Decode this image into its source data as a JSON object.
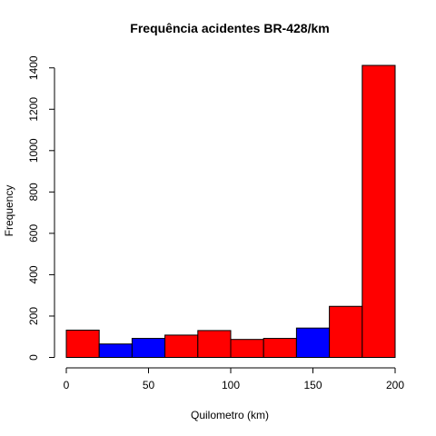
{
  "chart_data": {
    "type": "bar",
    "title": "Frequência acidentes BR-428/km",
    "xlabel": "Quilometro (km)",
    "ylabel": "Frequency",
    "bins": [
      {
        "from": 0,
        "to": 20,
        "value": 132,
        "color": "#ff0000"
      },
      {
        "from": 20,
        "to": 40,
        "value": 65,
        "color": "#0000ff"
      },
      {
        "from": 40,
        "to": 60,
        "value": 92,
        "color": "#0000ff"
      },
      {
        "from": 60,
        "to": 80,
        "value": 108,
        "color": "#ff0000"
      },
      {
        "from": 80,
        "to": 100,
        "value": 130,
        "color": "#ff0000"
      },
      {
        "from": 100,
        "to": 120,
        "value": 87,
        "color": "#ff0000"
      },
      {
        "from": 120,
        "to": 140,
        "value": 92,
        "color": "#ff0000"
      },
      {
        "from": 140,
        "to": 160,
        "value": 142,
        "color": "#0000ff"
      },
      {
        "from": 160,
        "to": 180,
        "value": 247,
        "color": "#ff0000"
      },
      {
        "from": 180,
        "to": 200,
        "value": 1412,
        "color": "#ff0000"
      }
    ],
    "xlim": [
      0,
      200
    ],
    "ylim": [
      0,
      1412
    ],
    "xticks": [
      "0",
      "50",
      "100",
      "150",
      "200"
    ],
    "yticks": [
      "0",
      "200",
      "400",
      "600",
      "800",
      "1000",
      "1200",
      "1400"
    ],
    "grid": false
  }
}
